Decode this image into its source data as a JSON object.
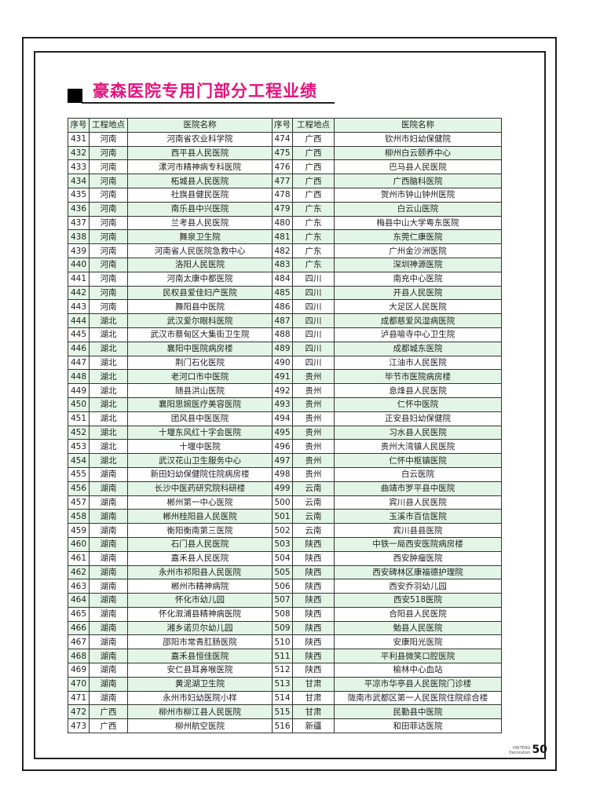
{
  "title": "豪森医院专用门部分工程业绩",
  "table": {
    "headers": [
      "序号",
      "工程地点",
      "医院名称",
      "序号",
      "工程地点",
      "医院名称"
    ],
    "rows": [
      [
        "431",
        "河南",
        "河南省农业科学院",
        "474",
        "广西",
        "钦州市妇幼保健院"
      ],
      [
        "432",
        "河南",
        "西平县人民医院",
        "475",
        "广西",
        "柳州白云颐养中心"
      ],
      [
        "433",
        "河南",
        "漯河市精神病专科医院",
        "476",
        "广西",
        "巴马县人民医院"
      ],
      [
        "434",
        "河南",
        "柘城县人民医院",
        "477",
        "广西",
        "广西脑科医院"
      ],
      [
        "435",
        "河南",
        "社旗县健民医院",
        "478",
        "广西",
        "贺州市钟山钟州医院"
      ],
      [
        "436",
        "河南",
        "南乐县中兴医院",
        "479",
        "广东",
        "白云山医院"
      ],
      [
        "437",
        "河南",
        "兰考县人民医院",
        "480",
        "广东",
        "梅县中山大学粤东医院"
      ],
      [
        "438",
        "河南",
        "舞泉卫生院",
        "481",
        "广东",
        "东莞仁康医院"
      ],
      [
        "439",
        "河南",
        "河南省人民医院急救中心",
        "482",
        "广东",
        "广州金沙洲医院"
      ],
      [
        "440",
        "河南",
        "洛阳人民医院",
        "483",
        "广东",
        "深圳神源医院"
      ],
      [
        "441",
        "河南",
        "河南太康中都医院",
        "484",
        "四川",
        "南充中心医院"
      ],
      [
        "442",
        "河南",
        "民权县爱佳妇产医院",
        "485",
        "四川",
        "开县人民医院"
      ],
      [
        "443",
        "河南",
        "舞阳县中医院",
        "486",
        "四川",
        "大足区人民医院"
      ],
      [
        "444",
        "湖北",
        "武汉爱尔眼科医院",
        "487",
        "四川",
        "成都慈爱风湿病医院"
      ],
      [
        "445",
        "湖北",
        "武汉市蔡甸区大集街卫生院",
        "488",
        "四川",
        "泸县喻寺中心卫生院"
      ],
      [
        "446",
        "湖北",
        "襄阳中医院病房楼",
        "489",
        "四川",
        "成都城东医院"
      ],
      [
        "447",
        "湖北",
        "荆门石化医院",
        "490",
        "四川",
        "江油市人民医院"
      ],
      [
        "448",
        "湖北",
        "老河口市中医院",
        "491",
        "贵州",
        "毕节市医院病房楼"
      ],
      [
        "449",
        "湖北",
        "随县洪山医院",
        "492",
        "贵州",
        "息烽县人民医院"
      ],
      [
        "450",
        "湖北",
        "襄阳思婉医疗美容医院",
        "493",
        "贵州",
        "仁怀中医院"
      ],
      [
        "451",
        "湖北",
        "团风县中医医院",
        "494",
        "贵州",
        "正安县妇幼保健院"
      ],
      [
        "452",
        "湖北",
        "十堰东风红十字会医院",
        "495",
        "贵州",
        "习水县人民医院"
      ],
      [
        "453",
        "湖北",
        "十堰中医院",
        "496",
        "贵州",
        "贵州大湾镇人民医院"
      ],
      [
        "454",
        "湖北",
        "武汉花山卫生服务中心",
        "497",
        "贵州",
        "仁怀中枢镇医院"
      ],
      [
        "455",
        "湖南",
        "新田妇幼保健院住院病房楼",
        "498",
        "贵州",
        "白云医院"
      ],
      [
        "456",
        "湖南",
        "长沙中医药研究院科研楼",
        "499",
        "云南",
        "曲靖市罗平县中医院"
      ],
      [
        "457",
        "湖南",
        "郴州第一中心医院",
        "500",
        "云南",
        "宾川县人民医院"
      ],
      [
        "458",
        "湖南",
        "郴州桂阳县人民医院",
        "501",
        "云南",
        "玉溪市百信医院"
      ],
      [
        "459",
        "湖南",
        "衡阳衡南第三医院",
        "502",
        "云南",
        "宾川县县医院"
      ],
      [
        "460",
        "湖南",
        "石门县人民医院",
        "503",
        "陕西",
        "中铁一局西安医院病房楼"
      ],
      [
        "461",
        "湖南",
        "嘉禾县人民医院",
        "504",
        "陕西",
        "西安肿瘤医院"
      ],
      [
        "462",
        "湖南",
        "永州市祁阳县人民医院",
        "505",
        "陕西",
        "西安碑林区康福德护理院"
      ],
      [
        "463",
        "湖南",
        "郴州市精神病院",
        "506",
        "陕西",
        "西安乔羽幼儿园"
      ],
      [
        "464",
        "湖南",
        "怀化市幼儿园",
        "507",
        "陕西",
        "西安518医院"
      ],
      [
        "465",
        "湖南",
        "怀化溆浦县精神病医院",
        "508",
        "陕西",
        "合阳县人民医院"
      ],
      [
        "466",
        "湖南",
        "湘乡诺贝尔幼儿园",
        "509",
        "陕西",
        "勉县人民医院"
      ],
      [
        "467",
        "湖南",
        "邵阳市常青肛肠医院",
        "510",
        "陕西",
        "安康阳光医院"
      ],
      [
        "468",
        "湖南",
        "嘉禾县恒佳医院",
        "511",
        "陕西",
        "平利县微笑口腔医院"
      ],
      [
        "469",
        "湖南",
        "安仁县耳鼻喉医院",
        "512",
        "陕西",
        "榆林中心血站"
      ],
      [
        "470",
        "湖南",
        "黄泥湖卫生院",
        "513",
        "甘肃",
        "平凉市华亭县人民医院门诊楼"
      ],
      [
        "471",
        "湖南",
        "永州市妇幼医院小样",
        "514",
        "甘肃",
        "陇南市武都区第一人民医院住院综合楼"
      ],
      [
        "472",
        "广西",
        "柳州市柳江县人民医院",
        "515",
        "甘肃",
        "民勤县中医院"
      ],
      [
        "473",
        "广西",
        "柳州航空医院",
        "516",
        "新疆",
        "和田菲达医院"
      ]
    ]
  },
  "footer": {
    "brand_line1": "HAITENG",
    "brand_line2": "Decoration",
    "page_number": "50"
  },
  "colors": {
    "title": "#e3147c",
    "row_tint": "#e3f5e7"
  }
}
